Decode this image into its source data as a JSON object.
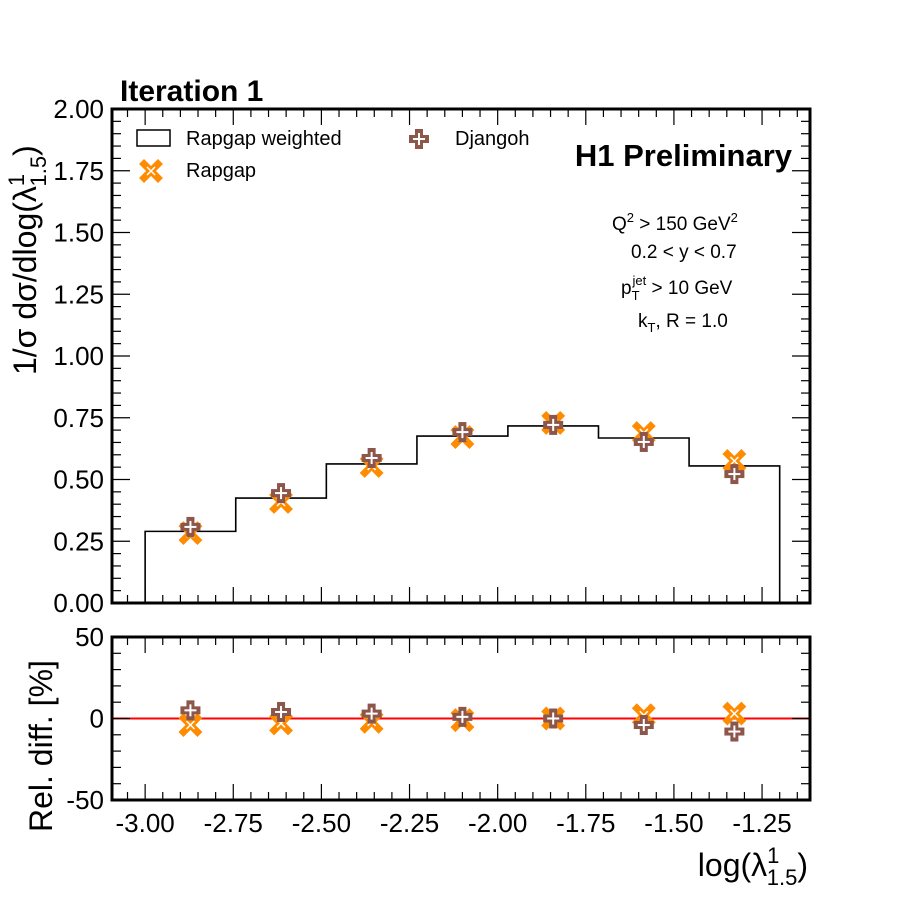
{
  "chart_data": [
    {
      "type": "bar",
      "panel": "main",
      "title": "Iteration 1",
      "xlabel": "log(λ^1_1.5)",
      "ylabel": "1/σ dσ/dlog(λ^1_1.5)",
      "xlim": [
        -3.094,
        -1.114
      ],
      "ylim": [
        0.0,
        2.0
      ],
      "xticks": [
        "-3.00",
        "-2.75",
        "-2.50",
        "-2.25",
        "-2.00",
        "-1.75",
        "-1.50",
        "-1.25"
      ],
      "xtick_values": [
        -3.0,
        -2.75,
        -2.5,
        -2.25,
        -2.0,
        -1.75,
        -1.5,
        -1.25
      ],
      "yticks": [
        "0.00",
        "0.25",
        "0.50",
        "0.75",
        "1.00",
        "1.25",
        "1.50",
        "1.75",
        "2.00"
      ],
      "ytick_values": [
        0.0,
        0.25,
        0.5,
        0.75,
        1.0,
        1.25,
        1.5,
        1.75,
        2.0
      ],
      "bin_edges": [
        -3.0,
        -2.743,
        -2.486,
        -2.229,
        -1.971,
        -1.714,
        -1.457,
        -1.2
      ],
      "series": [
        {
          "name": "Rapgap weighted",
          "style": "step-histogram",
          "color": "#000000",
          "values": [
            0.29,
            0.425,
            0.563,
            0.676,
            0.717,
            0.668,
            0.555
          ]
        },
        {
          "name": "Rapgap",
          "style": "marker-x",
          "color": "#ff8c00",
          "values": [
            0.283,
            0.409,
            0.555,
            0.672,
            0.729,
            0.688,
            0.575
          ]
        },
        {
          "name": "Djangoh",
          "style": "marker-plus",
          "color": "#8c564b",
          "values": [
            0.308,
            0.445,
            0.587,
            0.692,
            0.721,
            0.652,
            0.522
          ]
        }
      ],
      "legend": {
        "placement": "top-left",
        "columns": 2
      },
      "annotations": {
        "experiment": "H1 Preliminary",
        "cuts": [
          {
            "main": "Q",
            "sup": "2",
            "rest": " > 150 GeV",
            "sup2": "2"
          },
          {
            "main": "0.2 < y < 0.7"
          },
          {
            "main": "p",
            "sub": "T",
            "sup": "jet",
            "rest": " > 10 GeV"
          },
          {
            "main": "k",
            "sub": "T",
            "rest": ", R = 1.0"
          }
        ]
      },
      "grid": false
    },
    {
      "type": "scatter",
      "panel": "ratio",
      "xlabel": "log(λ^1_1.5)",
      "ylabel": "Rel. diff. [%]",
      "xlim": [
        -3.094,
        -1.114
      ],
      "ylim": [
        -50,
        50
      ],
      "yticks": [
        "-50",
        "0",
        "50"
      ],
      "ytick_values": [
        -50,
        0,
        50
      ],
      "reference_line": {
        "y": 0,
        "color": "#ff0000"
      },
      "series": [
        {
          "name": "Rapgap",
          "style": "marker-x",
          "color": "#ff8c00",
          "values": [
            -4,
            -3,
            -2,
            -1,
            0,
            2,
            3
          ]
        },
        {
          "name": "Djangoh",
          "style": "marker-plus",
          "color": "#8c564b",
          "values": [
            5,
            4,
            3,
            1,
            0,
            -4,
            -8
          ]
        }
      ],
      "grid": false
    }
  ],
  "labels": {
    "title": "Iteration 1",
    "experiment": "H1 Preliminary",
    "ylabel_main_prefix": "1/σ dσ/dlog(λ",
    "ylabel_main_sup": "1",
    "ylabel_main_sub": "1.5",
    "ylabel_main_suffix": ")",
    "ylabel_ratio": "Rel. diff. [%]",
    "xlabel_prefix": "log(λ",
    "xlabel_sup": "1",
    "xlabel_sub": "1.5",
    "xlabel_suffix": ")",
    "legend_hist": "Rapgap weighted",
    "legend_rapgap": "Rapgap",
    "legend_djangoh": "Djangoh",
    "cut1_main": "Q",
    "cut1_sup": "2",
    "cut1_rest": " > 150 GeV",
    "cut1_sup2": "2",
    "cut2": "0.2 < y < 0.7",
    "cut3_main": "p",
    "cut3_sub": "T",
    "cut3_sup": "jet",
    "cut3_rest": " > 10 GeV",
    "cut4_main": "k",
    "cut4_sub": "T",
    "cut4_rest": ", R = 1.0"
  }
}
